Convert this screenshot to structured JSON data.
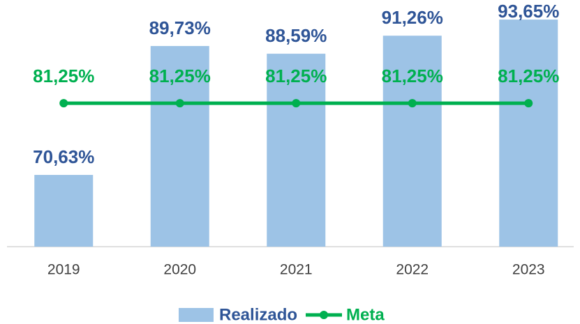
{
  "chart_data": {
    "type": "bar",
    "categories": [
      "2019",
      "2020",
      "2021",
      "2022",
      "2023"
    ],
    "ylim": [
      60,
      95
    ],
    "series": [
      {
        "name": "Realizado",
        "type": "bar",
        "color": "#9dc3e6",
        "label_color": "#2f5597",
        "values": [
          70.63,
          89.73,
          88.59,
          91.26,
          93.65
        ],
        "value_labels": [
          "70,63%",
          "89,73%",
          "88,59%",
          "91,26%",
          "93,65%"
        ]
      },
      {
        "name": "Meta",
        "type": "line",
        "color": "#00b050",
        "label_color": "#00b050",
        "values": [
          81.25,
          81.25,
          81.25,
          81.25,
          81.25
        ],
        "value_labels": [
          "81,25%",
          "81,25%",
          "81,25%",
          "81,25%",
          "81,25%"
        ]
      }
    ]
  }
}
